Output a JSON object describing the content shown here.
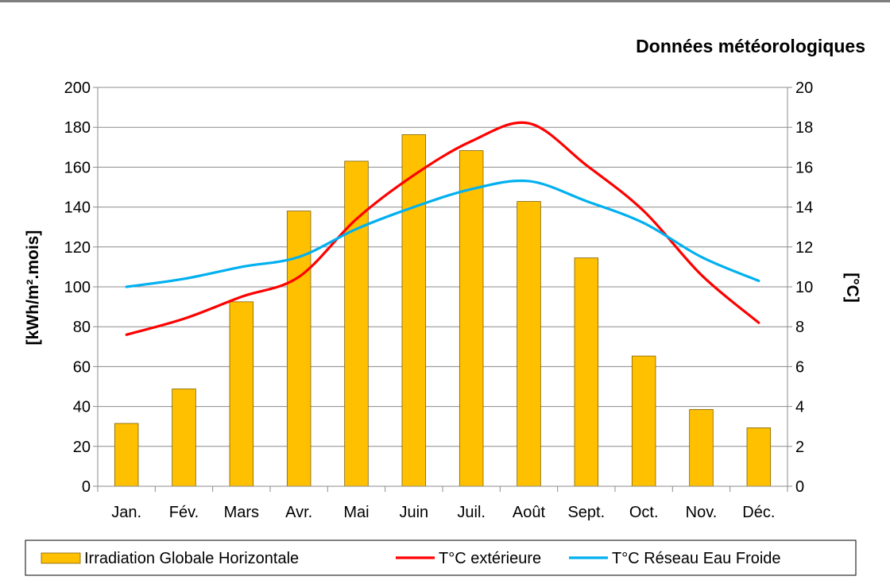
{
  "chart_data": {
    "type": "bar",
    "title": "Données météorologiques",
    "categories": [
      "Jan.",
      "Fév.",
      "Mars",
      "Avr.",
      "Mai",
      "Juin",
      "Juil.",
      "Août",
      "Sept.",
      "Oct.",
      "Nov.",
      "Déc."
    ],
    "ylabel": "[kWh/m².mois]",
    "y2label": "[°C]",
    "ylim": [
      0,
      200
    ],
    "y2lim": [
      0,
      20
    ],
    "yticks": [
      "0",
      "20",
      "40",
      "60",
      "80",
      "100",
      "120",
      "140",
      "160",
      "180",
      "200"
    ],
    "y2ticks": [
      "0",
      "2",
      "4",
      "6",
      "8",
      "10",
      "12",
      "14",
      "16",
      "18",
      "20"
    ],
    "grid": true,
    "legend_position": "bottom",
    "series": [
      {
        "name": "Irradiation Globale Horizontale",
        "type": "bar",
        "axis": "left",
        "color": "#FFC000",
        "values": [
          31.5,
          48.8,
          92.5,
          138,
          163,
          176.3,
          168.3,
          142.8,
          114.5,
          65.3,
          38.5,
          29.3
        ]
      },
      {
        "name": "T°C extérieure",
        "type": "line",
        "axis": "right",
        "color": "#FF0000",
        "values": [
          7.6,
          8.4,
          9.5,
          10.5,
          13.4,
          15.6,
          17.3,
          18.2,
          16.1,
          13.8,
          10.6,
          8.2
        ]
      },
      {
        "name": "T°C Réseau Eau Froide",
        "type": "line",
        "axis": "right",
        "color": "#00B0F0",
        "values": [
          10.0,
          10.4,
          11.0,
          11.5,
          12.9,
          14.0,
          14.9,
          15.3,
          14.3,
          13.2,
          11.5,
          10.3
        ]
      }
    ]
  }
}
